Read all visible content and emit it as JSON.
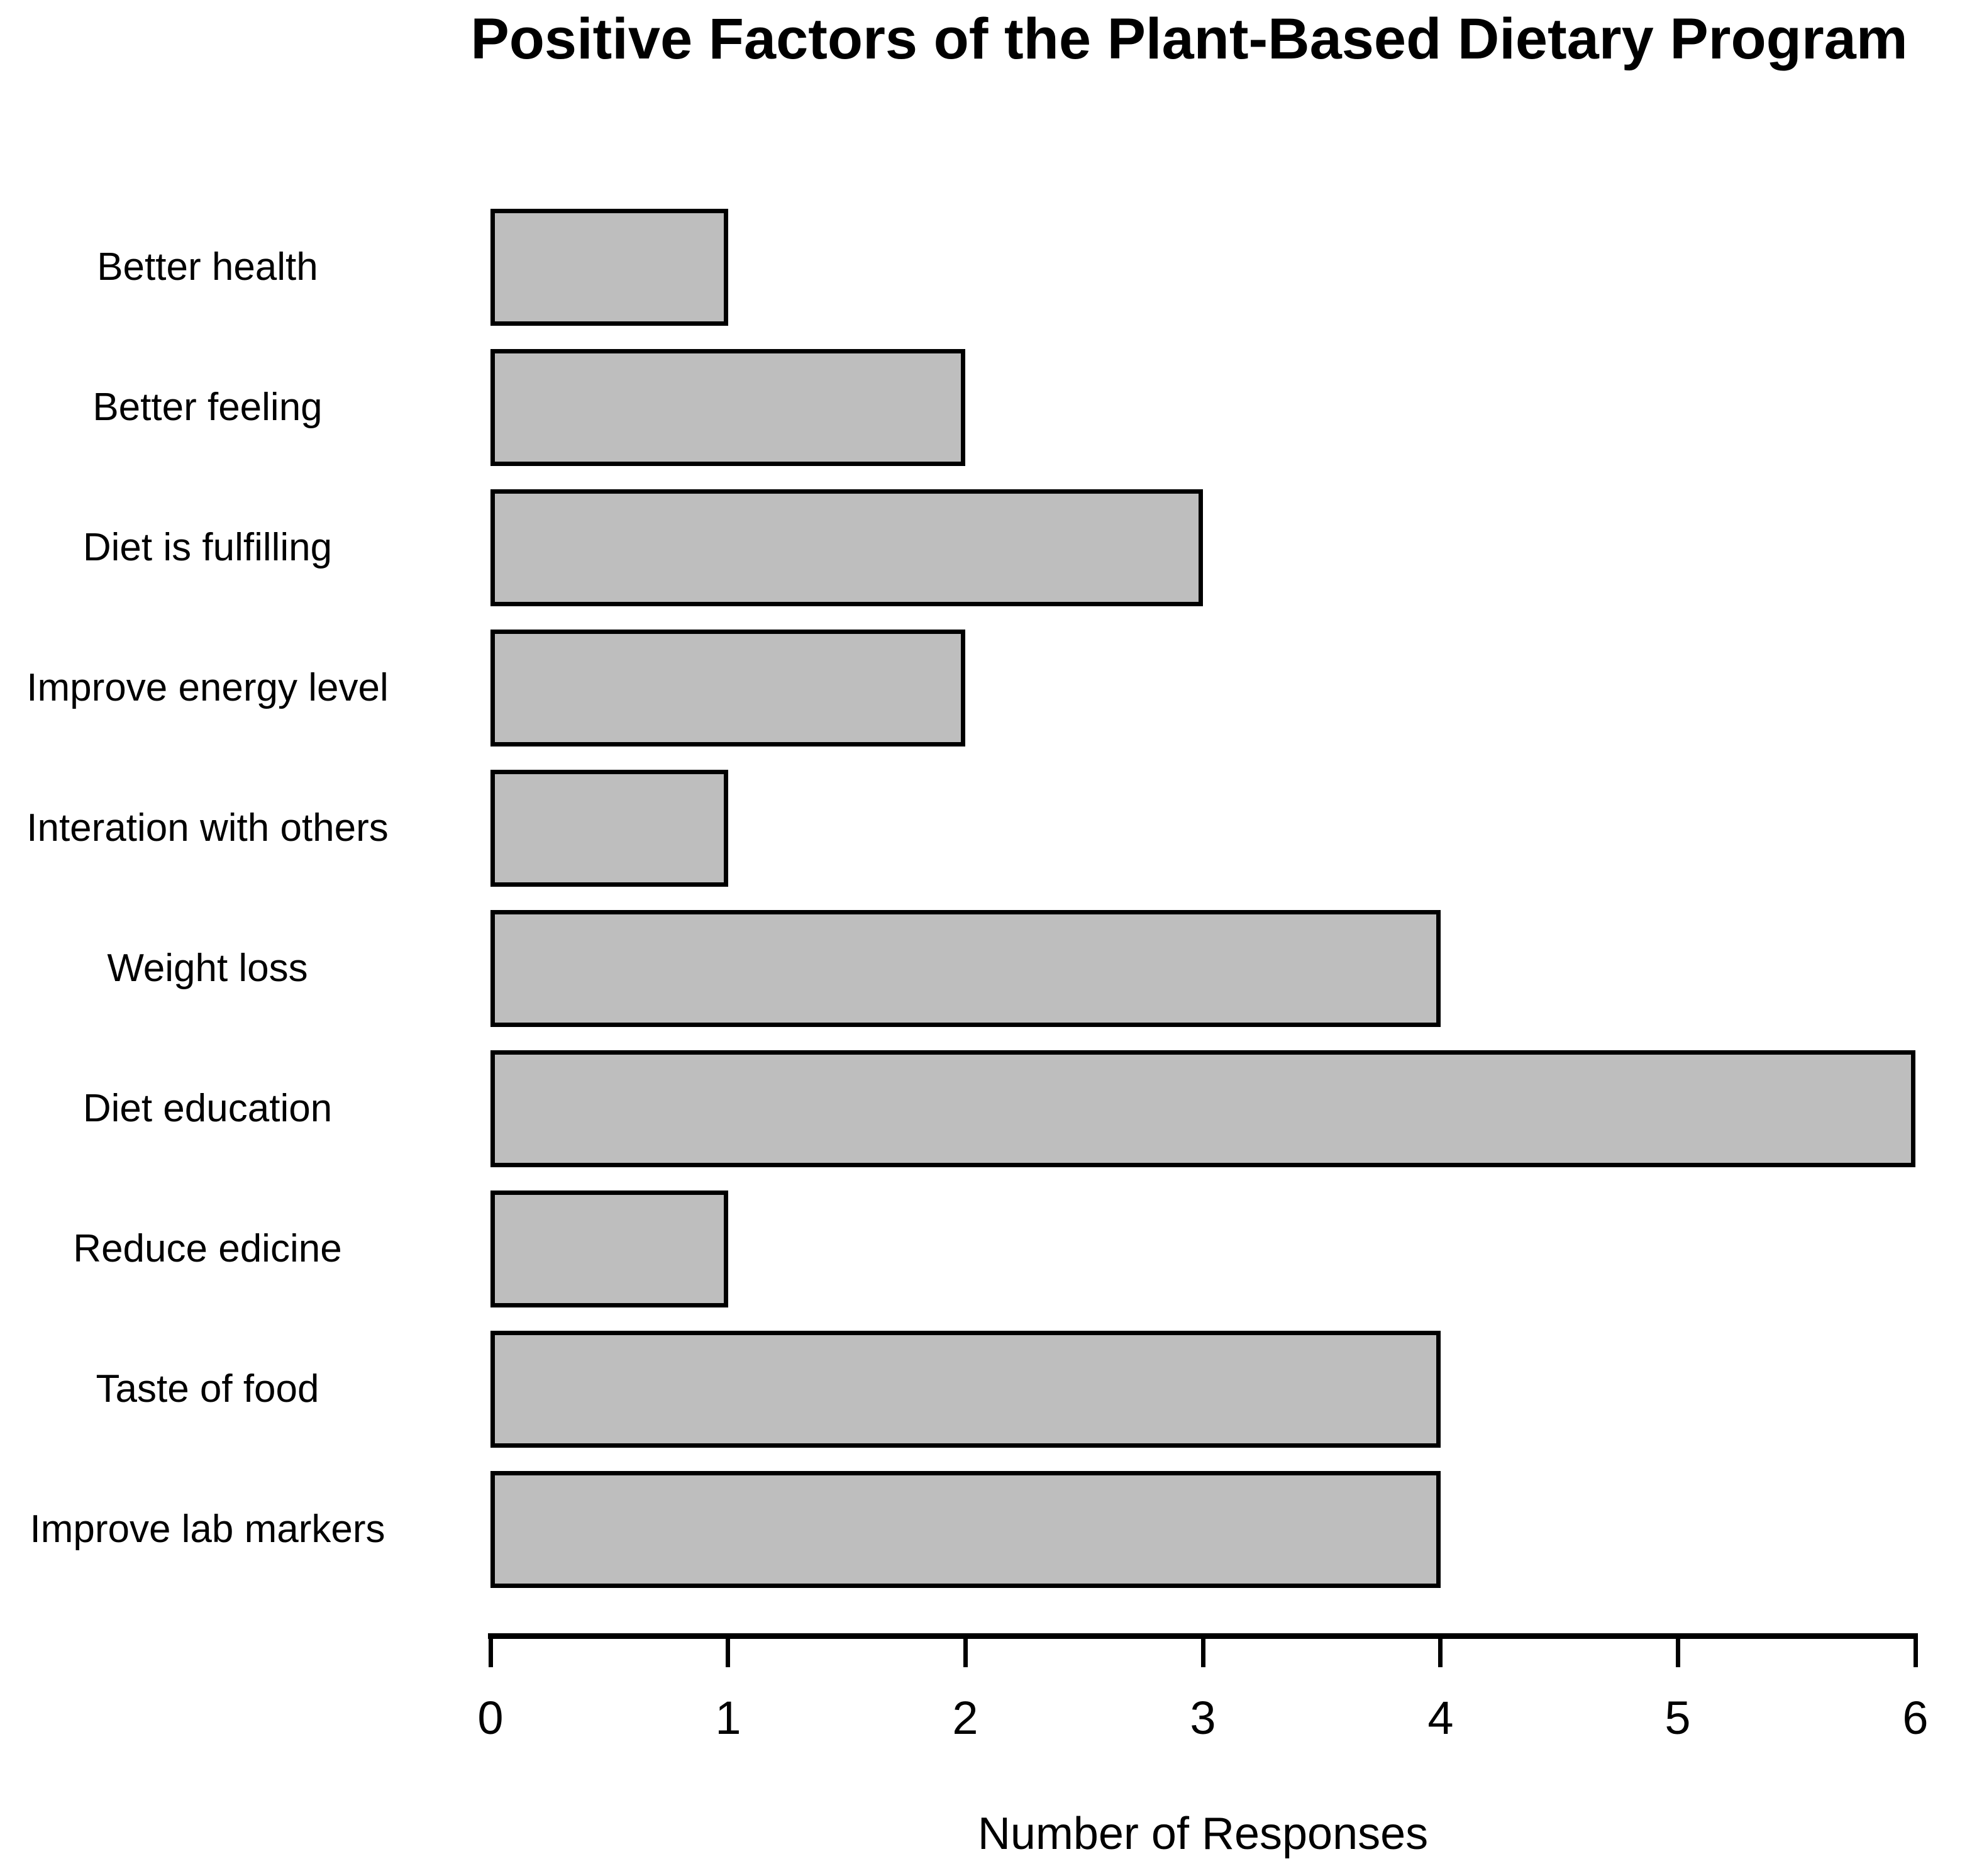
{
  "chart_data": {
    "type": "bar",
    "orientation": "horizontal",
    "title": "Positive Factors of the Plant-Based Dietary Program",
    "xlabel": "Number of Responses",
    "ylabel": "",
    "categories": [
      "Better health",
      "Better feeling",
      "Diet is fulfilling",
      "Improve energy level",
      "Interation with others",
      "Weight loss",
      "Diet education",
      "Reduce edicine",
      "Taste of food",
      "Improve lab markers"
    ],
    "values": [
      1,
      2,
      3,
      2,
      1,
      4,
      6,
      1,
      4,
      4
    ],
    "xlim": [
      0,
      6
    ],
    "xticks": [
      0,
      1,
      2,
      3,
      4,
      5,
      6
    ],
    "grid": false,
    "legend": null,
    "bar_fill": "#bebebe",
    "bar_stroke": "#000000",
    "background": "#ffffff"
  }
}
